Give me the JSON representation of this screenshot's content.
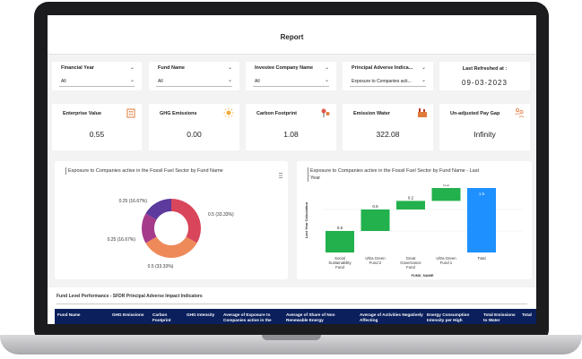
{
  "report": {
    "title": "Report"
  },
  "filters": [
    {
      "label": "Financial Year",
      "value": "All"
    },
    {
      "label": "Fund Name",
      "value": "All"
    },
    {
      "label": "Investee Company Name",
      "value": "All"
    },
    {
      "label": "Principal Adverse Indica...",
      "value": "Exposure to Companies acti..."
    }
  ],
  "refresh": {
    "label": "Last Refreshed at :",
    "value": "09-03-2023"
  },
  "kpis": [
    {
      "label": "Enterprise Value",
      "value": "0.55",
      "icon": "building-icon"
    },
    {
      "label": "GHG Emissions",
      "value": "0.00",
      "icon": "sun-icon"
    },
    {
      "label": "Carbon Footprint",
      "value": "1.08",
      "icon": "footprint-icon"
    },
    {
      "label": "Emission Water",
      "value": "322.08",
      "icon": "factory-icon"
    },
    {
      "label": "Un-adjusted Pay Gap",
      "value": "Infinity",
      "icon": "people-icon"
    }
  ],
  "donut_panel": {
    "title": "Exposure to Companies active in the Fossil Fuel Sector by Fund Name"
  },
  "bar_panel": {
    "title_line1": "Exposure to Companies active in the Fossil Fuel Sector by Fund Name - Last",
    "title_line2": "Year"
  },
  "chart_data": [
    {
      "type": "pie",
      "title": "Exposure to Companies active in the Fossil Fuel Sector by Fund Name",
      "values": [
        0.5,
        0.5,
        0.25,
        0.25
      ],
      "labels": [
        "0.5 (33.33%)",
        "0.5 (33.33%)",
        "0.25 (16.67%)",
        "0.25 (16.67%)"
      ],
      "colors": [
        "#d9455a",
        "#ee8a5a",
        "#a63a8a",
        "#5c3a9e"
      ]
    },
    {
      "type": "bar",
      "subtype": "waterfall",
      "title": "Exposure to Companies active in the Fossil Fuel Sector by Fund Name - Last Year",
      "categories": [
        "Social Sustainability Fund",
        "Ultra Green Fund 2",
        "Great Governance Fund",
        "Ultra Green Fund 1",
        "Total"
      ],
      "values": [
        0.5,
        0.5,
        0.2,
        0.3,
        1.5
      ],
      "labels": [
        "0.5",
        "0.5",
        "0.2",
        "0.3",
        "1.5"
      ],
      "ylabel": "Last Year Calculation",
      "xlabel": "FUND_NAME",
      "ylim": [
        0,
        1.5
      ],
      "colors": {
        "increase": "#22b14c",
        "total": "#1e90ff"
      }
    }
  ],
  "table": {
    "title": "Fund Level Performance - SFDR Principal Adverse Impact Indicators",
    "columns": [
      "Fund Name",
      "GHG Emissions",
      "Carbon Footprint",
      "GHG Intensity",
      "Average of Exposure to Companies active in the",
      "Average of Share of Non Renewable Energy",
      "Average of Activities Negatively Affecting",
      "Energy Consumption Intensity per High",
      "Total Emissions to Water",
      "Total"
    ]
  }
}
